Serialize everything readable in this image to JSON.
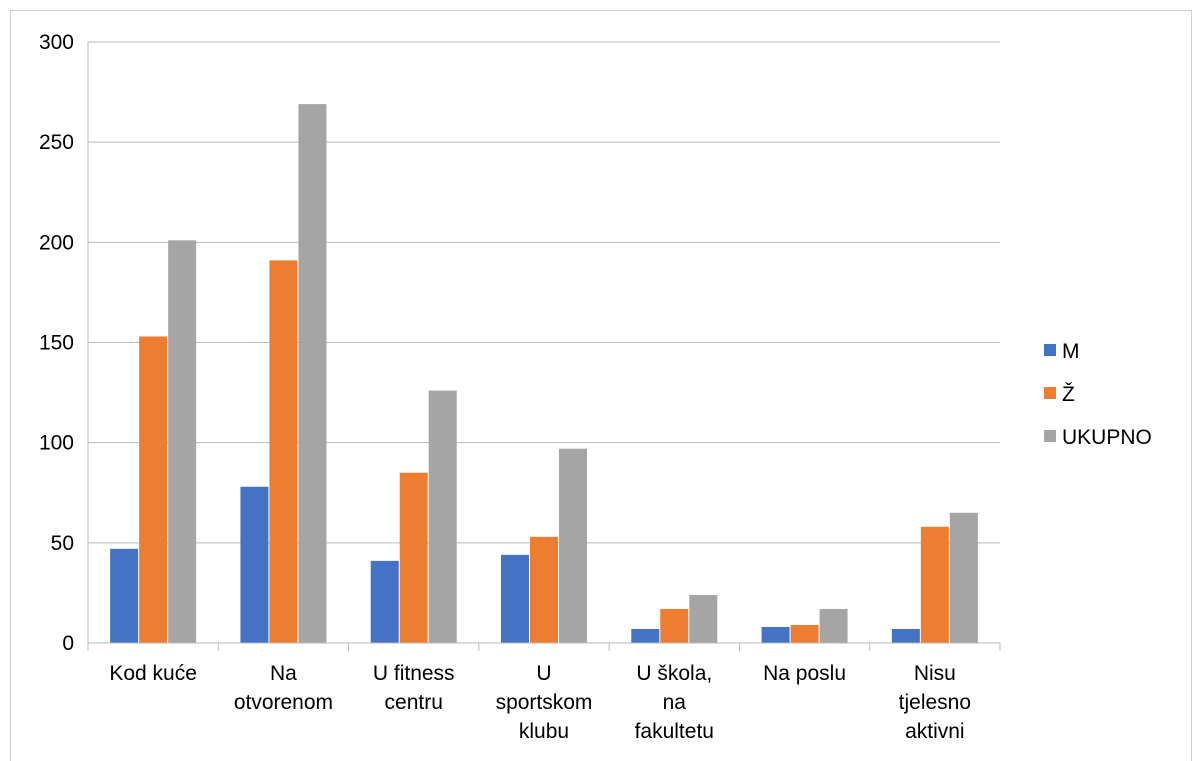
{
  "chart_data": {
    "type": "bar",
    "title": "",
    "xlabel": "",
    "ylabel": "",
    "ylim": [
      0,
      300
    ],
    "yticks": [
      0,
      50,
      100,
      150,
      200,
      250,
      300
    ],
    "grid": true,
    "legend_position": "right",
    "categories": [
      [
        "Kod kuće"
      ],
      [
        "Na",
        "otvorenom"
      ],
      [
        "U fitness",
        "centru"
      ],
      [
        "U",
        "sportskom",
        "klubu"
      ],
      [
        "U škola,",
        "na",
        "fakultetu"
      ],
      [
        "Na poslu"
      ],
      [
        "Nisu",
        "tjelesno",
        "aktivni"
      ]
    ],
    "series": [
      {
        "name": "M",
        "color": "#4472c4",
        "values": [
          47,
          78,
          41,
          44,
          7,
          8,
          7
        ]
      },
      {
        "name": "Ž",
        "color": "#ed7d31",
        "values": [
          153,
          191,
          85,
          53,
          17,
          9,
          58
        ]
      },
      {
        "name": "UKUPNO",
        "color": "#a5a5a5",
        "values": [
          201,
          269,
          126,
          97,
          24,
          17,
          65
        ]
      }
    ]
  }
}
